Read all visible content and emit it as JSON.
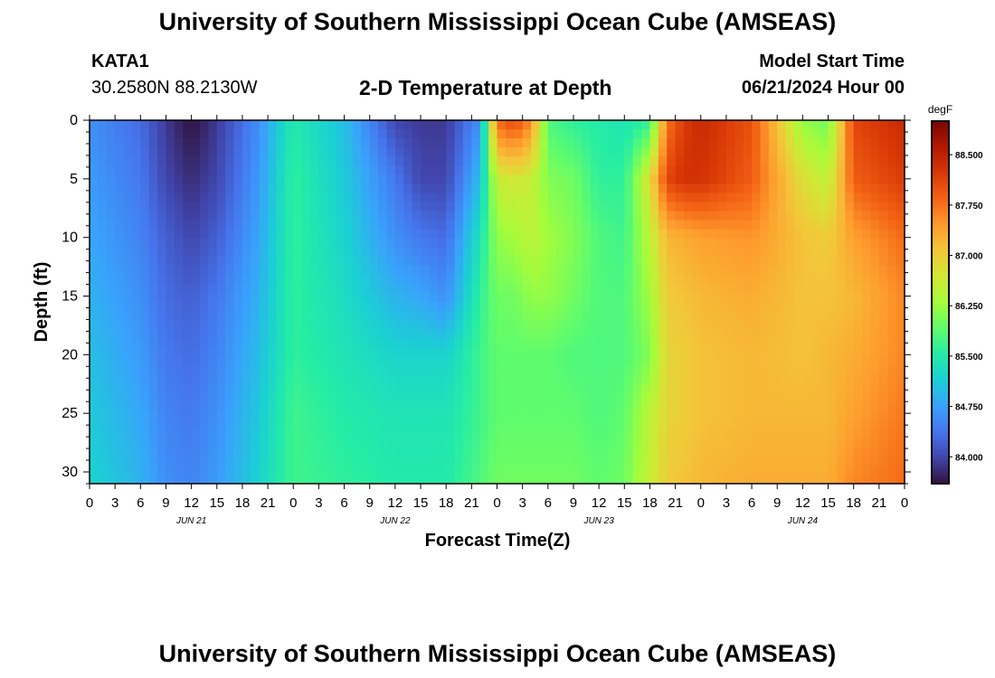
{
  "header": {
    "title": "University of Southern Mississippi Ocean Cube (AMSEAS)",
    "station_id": "KATA1",
    "coordinates": "30.2580N  88.2130W",
    "subtitle": "2-D Temperature at Depth",
    "start_label": "Model Start Time",
    "start_value": "06/21/2024 Hour 00"
  },
  "footer": {
    "title": "University of Southern Mississippi Ocean Cube (AMSEAS)"
  },
  "chart_data": {
    "type": "heatmap",
    "title": "2-D Temperature at Depth",
    "xlabel": "Forecast Time(Z)",
    "ylabel": "Depth (ft)",
    "x_ticks": [
      "0",
      "3",
      "6",
      "9",
      "12",
      "15",
      "18",
      "21",
      "0",
      "3",
      "6",
      "9",
      "12",
      "15",
      "18",
      "21",
      "0",
      "3",
      "6",
      "9",
      "12",
      "15",
      "18",
      "21",
      "0",
      "3",
      "6",
      "9",
      "12",
      "15",
      "18",
      "21",
      "0"
    ],
    "date_labels": [
      {
        "label": "JUN 21",
        "hour": 12
      },
      {
        "label": "JUN 22",
        "hour": 36
      },
      {
        "label": "JUN 23",
        "hour": 60
      },
      {
        "label": "JUN 24",
        "hour": 84
      }
    ],
    "x_range_hours": [
      0,
      96
    ],
    "y_ticks": [
      0,
      5,
      10,
      15,
      20,
      25,
      30
    ],
    "y_range": [
      0,
      31
    ],
    "colorbar": {
      "unit": "degF",
      "ticks": [
        "88.500",
        "87.750",
        "87.000",
        "86.250",
        "85.500",
        "84.750",
        "84.000"
      ],
      "range": [
        83.6,
        89.0
      ],
      "stops": [
        "#30123b",
        "#4145ab",
        "#4675ed",
        "#39a2fc",
        "#1bcfd4",
        "#24eca6",
        "#61fc6c",
        "#a4fc3b",
        "#d1e834",
        "#f3c63a",
        "#fe9b2d",
        "#f36315",
        "#d93806",
        "#b11901",
        "#7a0403"
      ]
    },
    "hours": [
      0,
      6,
      9,
      12,
      15,
      20,
      24,
      30,
      36,
      39,
      42,
      46,
      48,
      50,
      52,
      54,
      57,
      60,
      63,
      66,
      68,
      70,
      72,
      78,
      84,
      87,
      90,
      96
    ],
    "depths": [
      0,
      5,
      10,
      15,
      20,
      25,
      31
    ],
    "temperature_degF": [
      [
        84.6,
        84.3,
        83.9,
        83.6,
        83.9,
        84.6,
        85.5,
        85.0,
        84.0,
        83.9,
        83.9,
        84.6,
        87.8,
        88.1,
        87.6,
        85.8,
        85.6,
        85.5,
        85.4,
        85.6,
        87.7,
        88.2,
        88.4,
        88.0,
        86.2,
        86.0,
        88.1,
        88.4
      ],
      [
        84.7,
        84.4,
        84.0,
        83.8,
        84.0,
        84.7,
        85.6,
        85.1,
        84.4,
        84.0,
        84.0,
        85.0,
        86.6,
        86.7,
        86.6,
        86.1,
        86.0,
        85.6,
        85.6,
        86.8,
        88.1,
        88.3,
        88.3,
        87.9,
        86.8,
        86.5,
        87.9,
        88.2
      ],
      [
        84.8,
        84.5,
        84.2,
        84.0,
        84.2,
        84.8,
        85.6,
        85.2,
        84.6,
        84.4,
        84.3,
        85.4,
        86.2,
        86.3,
        86.5,
        86.3,
        86.1,
        85.8,
        85.7,
        86.5,
        87.2,
        87.3,
        87.4,
        87.5,
        87.1,
        87.0,
        87.4,
        87.8
      ],
      [
        84.9,
        84.6,
        84.3,
        84.2,
        84.4,
        84.9,
        85.6,
        85.3,
        84.9,
        84.8,
        84.6,
        85.6,
        86.0,
        86.0,
        86.2,
        86.2,
        86.0,
        85.8,
        85.8,
        86.3,
        87.0,
        87.1,
        87.2,
        87.3,
        87.1,
        87.1,
        87.2,
        87.6
      ],
      [
        85.0,
        84.7,
        84.4,
        84.3,
        84.5,
        85.0,
        85.6,
        85.4,
        85.2,
        85.2,
        85.2,
        85.7,
        85.9,
        85.9,
        85.9,
        85.9,
        85.8,
        85.8,
        85.8,
        86.1,
        86.9,
        87.0,
        87.1,
        87.2,
        87.1,
        87.2,
        87.3,
        87.6
      ],
      [
        85.1,
        84.8,
        84.5,
        84.4,
        84.6,
        85.1,
        85.7,
        85.5,
        85.4,
        85.4,
        85.4,
        85.7,
        85.9,
        85.9,
        85.9,
        85.9,
        85.9,
        85.8,
        85.9,
        86.5,
        86.9,
        87.0,
        87.1,
        87.2,
        87.2,
        87.2,
        87.4,
        87.7
      ],
      [
        85.2,
        84.9,
        84.6,
        84.5,
        84.7,
        85.2,
        85.7,
        85.6,
        85.5,
        85.5,
        85.5,
        85.8,
        86.0,
        86.0,
        86.0,
        86.0,
        86.0,
        85.9,
        86.0,
        86.6,
        87.0,
        87.1,
        87.2,
        87.3,
        87.3,
        87.3,
        87.6,
        87.8
      ]
    ]
  }
}
